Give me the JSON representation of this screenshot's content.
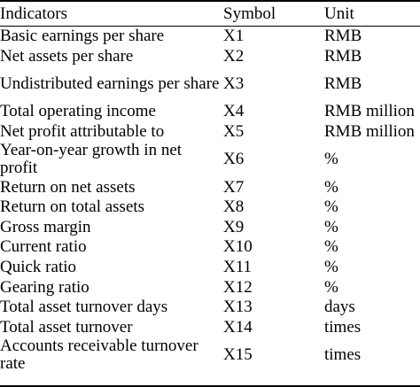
{
  "table": {
    "headers": [
      "Indicators",
      "Symbol",
      "Unit"
    ],
    "rows": [
      {
        "indicator": "Basic earnings per share",
        "symbol": "X1",
        "unit": "RMB"
      },
      {
        "indicator": "Net assets per share",
        "symbol": "X2",
        "unit": "RMB"
      },
      {
        "indicator": "Undistributed earnings per share",
        "symbol": "X3",
        "unit": "RMB"
      },
      {
        "indicator": "Total operating income",
        "symbol": "X4",
        "unit": "RMB million"
      },
      {
        "indicator": "Net profit attributable to",
        "symbol": "X5",
        "unit": "RMB million"
      },
      {
        "indicator": "Year-on-year growth in net profit",
        "symbol": "X6",
        "unit": "%"
      },
      {
        "indicator": "Return on net assets",
        "symbol": "X7",
        "unit": "%"
      },
      {
        "indicator": "Return on total assets",
        "symbol": "X8",
        "unit": "%"
      },
      {
        "indicator": "Gross margin",
        "symbol": "X9",
        "unit": "%"
      },
      {
        "indicator": "Current ratio",
        "symbol": "X10",
        "unit": "%"
      },
      {
        "indicator": "Quick ratio",
        "symbol": "X11",
        "unit": "%"
      },
      {
        "indicator": "Gearing ratio",
        "symbol": "X12",
        "unit": "%"
      },
      {
        "indicator": "Total asset turnover days",
        "symbol": "X13",
        "unit": "days"
      },
      {
        "indicator": "Total asset turnover",
        "symbol": "X14",
        "unit": "times"
      },
      {
        "indicator": "Accounts receivable turnover rate",
        "symbol": "X15",
        "unit": "times"
      }
    ]
  }
}
